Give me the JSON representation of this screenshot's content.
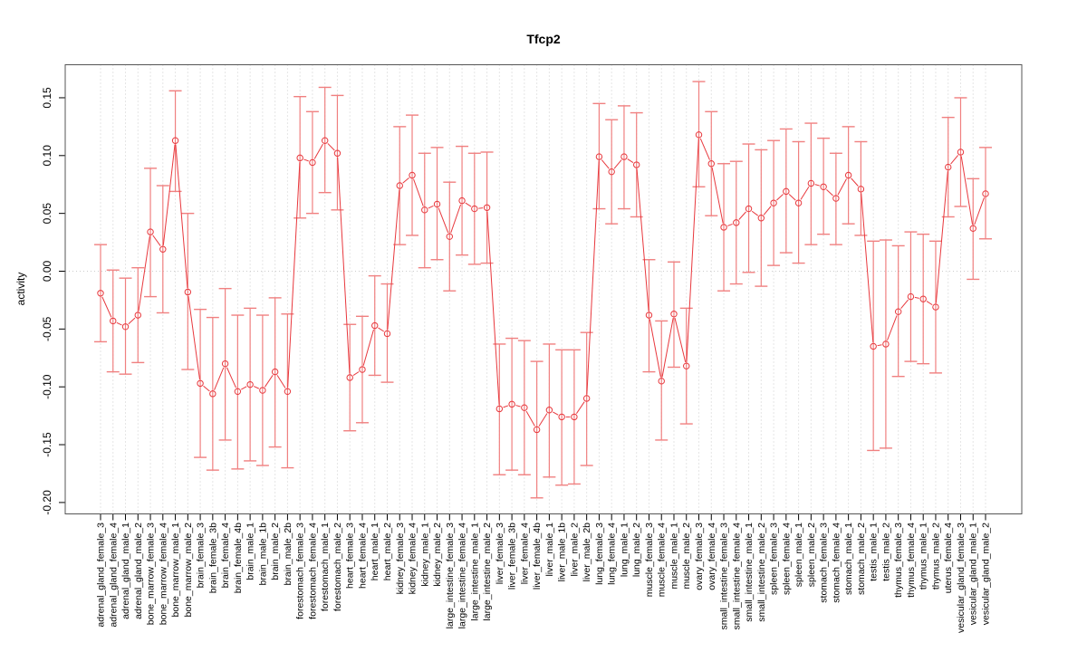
{
  "chart_data": {
    "type": "line",
    "title": "Tfcp2",
    "xlabel": "",
    "ylabel": "activity",
    "ylim": [
      -0.205,
      0.178
    ],
    "yticks": [
      "0.15",
      "0.10",
      "0.05",
      "0.00",
      "-0.05",
      "-0.10",
      "-0.15",
      "-0.20"
    ],
    "ytick_values": [
      0.15,
      0.1,
      0.05,
      0.0,
      -0.05,
      -0.1,
      -0.15,
      -0.2
    ],
    "grid": true,
    "legend": "none",
    "color": "#e8383d",
    "errorbar_color": "#f08080",
    "categories": [
      "adrenal_gland_female_3",
      "adrenal_gland_female_4",
      "adrenal_gland_male_1",
      "adrenal_gland_male_2",
      "bone_marrow_female_3",
      "bone_marrow_female_4",
      "bone_marrow_male_1",
      "bone_marrow_male_2",
      "brain_female_3",
      "brain_female_3b",
      "brain_female_4",
      "brain_female_4b",
      "brain_male_1",
      "brain_male_1b",
      "brain_male_2",
      "brain_male_2b",
      "forestomach_female_3",
      "forestomach_female_4",
      "forestomach_male_1",
      "forestomach_male_2",
      "heart_female_3",
      "heart_female_4",
      "heart_male_1",
      "heart_male_2",
      "kidney_female_3",
      "kidney_female_4",
      "kidney_male_1",
      "kidney_male_2",
      "large_intestine_female_3",
      "large_intestine_female_4",
      "large_intestine_male_1",
      "large_intestine_male_2",
      "liver_female_3",
      "liver_female_3b",
      "liver_female_4",
      "liver_female_4b",
      "liver_male_1",
      "liver_male_1b",
      "liver_male_2",
      "liver_male_2b",
      "lung_female_3",
      "lung_female_4",
      "lung_male_1",
      "lung_male_2",
      "muscle_female_3",
      "muscle_female_4",
      "muscle_male_1",
      "muscle_male_2",
      "ovary_female_3",
      "ovary_female_4",
      "small_intestine_female_3",
      "small_intestine_female_4",
      "small_intestine_male_1",
      "small_intestine_male_2",
      "spleen_female_3",
      "spleen_female_4",
      "spleen_male_1",
      "spleen_male_2",
      "stomach_female_3",
      "stomach_female_4",
      "stomach_male_1",
      "stomach_male_2",
      "testis_male_1",
      "testis_male_2",
      "thymus_female_3",
      "thymus_female_4",
      "thymus_male_1",
      "thymus_male_2",
      "uterus_female_4",
      "vesicular_gland_female_3",
      "vesicular_gland_male_1",
      "vesicular_gland_male_2"
    ],
    "values": [
      -0.019,
      -0.043,
      -0.048,
      -0.038,
      0.034,
      0.019,
      0.113,
      -0.018,
      -0.097,
      -0.106,
      -0.08,
      -0.104,
      -0.098,
      -0.103,
      -0.087,
      -0.104,
      0.098,
      0.094,
      0.113,
      0.102,
      -0.092,
      -0.085,
      -0.047,
      -0.054,
      0.074,
      0.083,
      0.053,
      0.058,
      0.03,
      0.061,
      0.054,
      0.055,
      -0.119,
      -0.115,
      -0.118,
      -0.137,
      -0.12,
      -0.126,
      -0.126,
      -0.11,
      0.099,
      0.086,
      0.099,
      0.092,
      -0.038,
      -0.095,
      -0.037,
      -0.082,
      0.118,
      0.093,
      0.038,
      0.042,
      0.054,
      0.046,
      0.059,
      0.069,
      0.059,
      0.076,
      0.073,
      0.063,
      0.083,
      0.071,
      -0.065,
      -0.063,
      -0.035,
      -0.022,
      -0.024,
      -0.031,
      0.09,
      0.103,
      0.037,
      0.067
    ],
    "upper": [
      0.023,
      0.001,
      -0.006,
      0.003,
      0.089,
      0.074,
      0.156,
      0.05,
      -0.033,
      -0.04,
      -0.015,
      -0.038,
      -0.032,
      -0.038,
      -0.023,
      -0.037,
      0.151,
      0.138,
      0.159,
      0.152,
      -0.046,
      -0.039,
      -0.004,
      -0.011,
      0.125,
      0.135,
      0.102,
      0.107,
      0.077,
      0.108,
      0.102,
      0.103,
      -0.063,
      -0.058,
      -0.06,
      -0.078,
      -0.063,
      -0.068,
      -0.068,
      -0.053,
      0.145,
      0.131,
      0.143,
      0.137,
      0.01,
      -0.043,
      0.008,
      -0.032,
      0.164,
      0.138,
      0.093,
      0.095,
      0.11,
      0.105,
      0.113,
      0.123,
      0.112,
      0.128,
      0.115,
      0.102,
      0.125,
      0.112,
      0.026,
      0.027,
      0.022,
      0.034,
      0.032,
      0.026,
      0.133,
      0.15,
      0.08,
      0.107
    ],
    "lower": [
      -0.061,
      -0.087,
      -0.089,
      -0.079,
      -0.022,
      -0.036,
      0.069,
      -0.085,
      -0.161,
      -0.172,
      -0.146,
      -0.171,
      -0.164,
      -0.168,
      -0.152,
      -0.17,
      0.046,
      0.05,
      0.068,
      0.053,
      -0.138,
      -0.131,
      -0.09,
      -0.096,
      0.023,
      0.031,
      0.003,
      0.01,
      -0.017,
      0.014,
      0.006,
      0.007,
      -0.176,
      -0.172,
      -0.176,
      -0.196,
      -0.178,
      -0.185,
      -0.184,
      -0.168,
      0.054,
      0.041,
      0.054,
      0.047,
      -0.087,
      -0.146,
      -0.083,
      -0.132,
      0.073,
      0.048,
      -0.017,
      -0.011,
      -0.001,
      -0.013,
      0.005,
      0.016,
      0.007,
      0.023,
      0.032,
      0.023,
      0.041,
      0.031,
      -0.155,
      -0.153,
      -0.091,
      -0.078,
      -0.08,
      -0.088,
      0.047,
      0.056,
      -0.007,
      0.028
    ]
  }
}
